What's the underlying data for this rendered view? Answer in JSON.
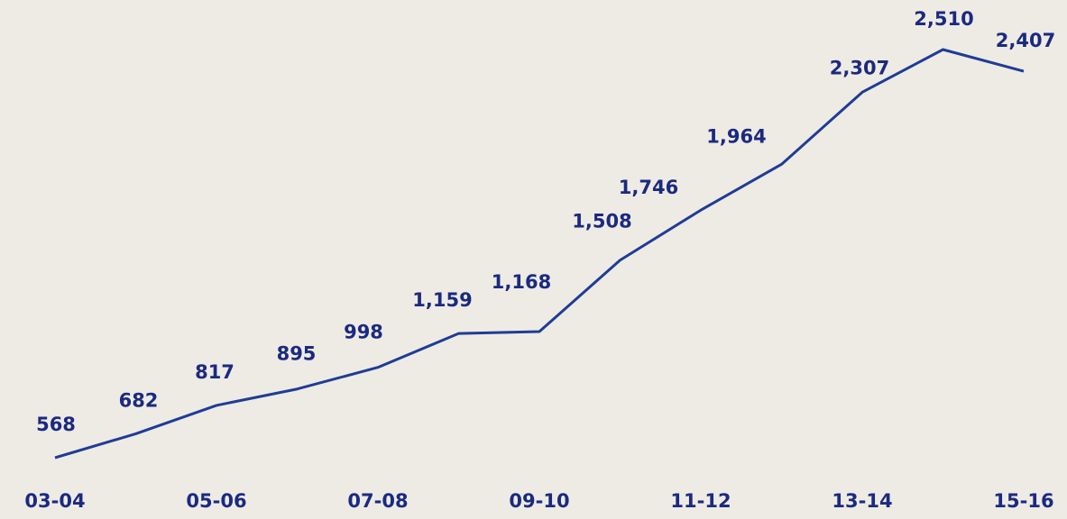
{
  "chart_data": {
    "type": "line",
    "categories": [
      "03-04",
      null,
      "05-06",
      null,
      "07-08",
      null,
      "09-10",
      null,
      "11-12",
      null,
      "13-14",
      null,
      "15-16"
    ],
    "series": [
      {
        "color": "#1f3c96",
        "values": [
          568,
          682,
          817,
          895,
          998,
          1159,
          1168,
          1508,
          1746,
          1964,
          2307,
          2510,
          2407
        ],
        "value_labels": [
          "568",
          "682",
          "817",
          "895",
          "998",
          "1,159",
          "1,168",
          "1,508",
          "1,746",
          "1,964",
          "2,307",
          "2,510",
          "2,407"
        ]
      }
    ]
  }
}
